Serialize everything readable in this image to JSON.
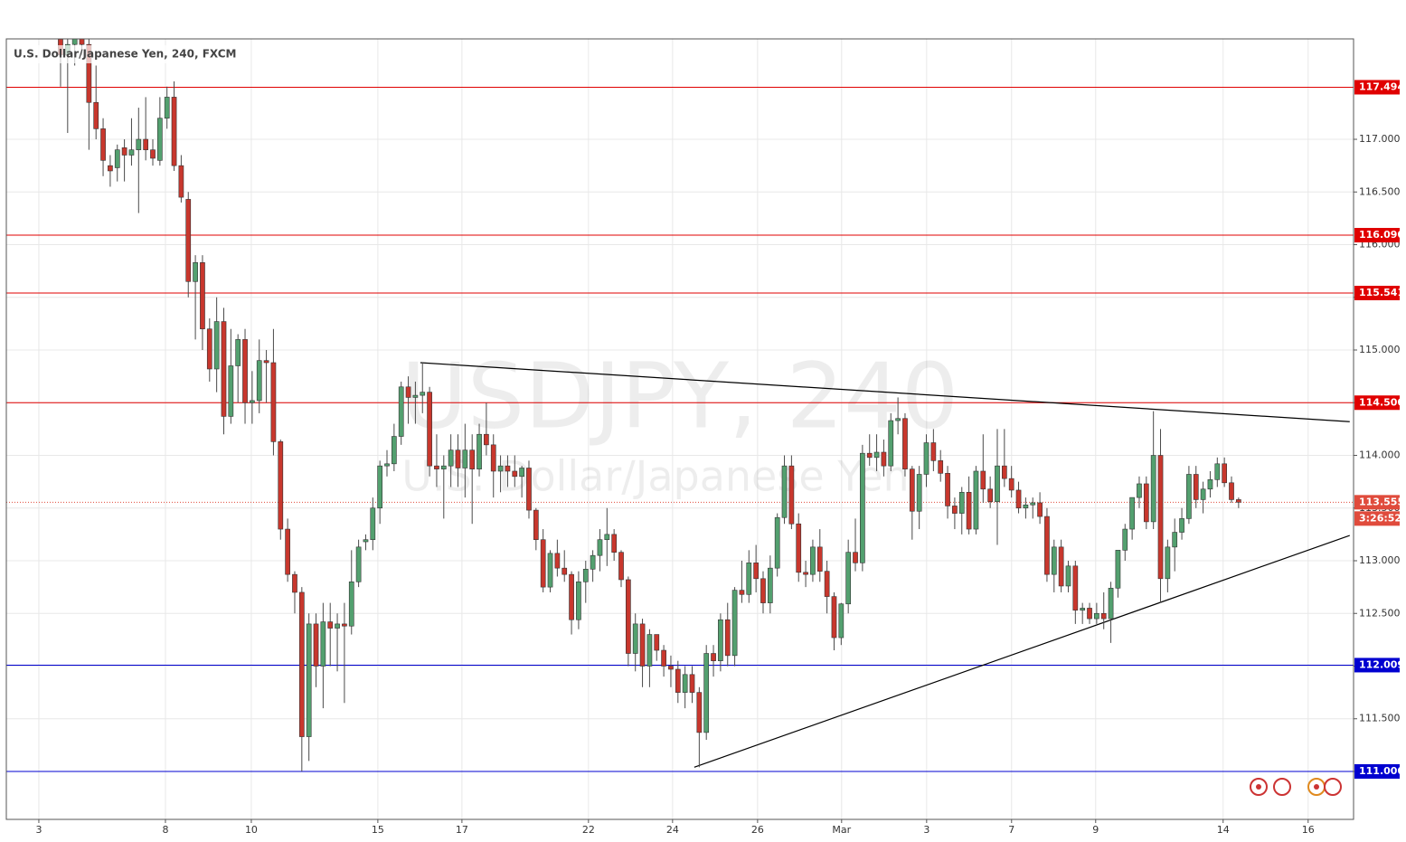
{
  "chart_data": {
    "type": "candlestick",
    "title": "U.S. Dollar/Japanese Yen, 240, FXCM",
    "watermark": [
      "USDJPY, 240",
      "U.S. Dollar/Japanese Yen"
    ],
    "up_color": "#53a06f",
    "down_color": "#c8372d",
    "wick_color": "#4a4a4a",
    "open": [
      117.95,
      117.8,
      117.9,
      118.0,
      117.9,
      117.35,
      117.1,
      116.75,
      116.73,
      116.92,
      116.85,
      116.9,
      117.0,
      116.9,
      116.8,
      117.2,
      117.4,
      116.75,
      116.43,
      115.65,
      115.83,
      115.2,
      114.82,
      115.27,
      114.37,
      114.85,
      115.1,
      114.5,
      114.52,
      114.9,
      114.88,
      114.13,
      113.3,
      112.87,
      112.7,
      111.33,
      112.4,
      112.0,
      112.42,
      112.36,
      112.4,
      112.38,
      112.8,
      113.18,
      113.2,
      113.5,
      113.9,
      113.92,
      114.18,
      114.65,
      114.55,
      114.57,
      114.6,
      113.9,
      113.87,
      113.9,
      114.05,
      113.88,
      114.05,
      113.87,
      114.2,
      114.1,
      113.85,
      113.9,
      113.85,
      113.8,
      113.88,
      113.48,
      113.2,
      112.75,
      113.07,
      112.93,
      112.87,
      112.44,
      112.8,
      112.92,
      113.05,
      113.2,
      113.25,
      113.08,
      112.82,
      112.12,
      112.4,
      112.0,
      112.3,
      112.15,
      112.0,
      111.97,
      111.75,
      111.92,
      111.75,
      111.37,
      112.12,
      112.05,
      112.44,
      112.1,
      112.72,
      112.68,
      112.98,
      112.83,
      112.6,
      112.93,
      113.41,
      113.9,
      113.35,
      112.89,
      112.87,
      113.13,
      112.9,
      112.66,
      112.27,
      112.59,
      113.08,
      112.98,
      114.02,
      113.98,
      114.03,
      113.9,
      114.33,
      114.35,
      113.87,
      113.47,
      113.82,
      114.12,
      113.95,
      113.83,
      113.52,
      113.45,
      113.65,
      113.3,
      113.85,
      113.68,
      113.56,
      113.9,
      113.78,
      113.67,
      113.5,
      113.53,
      113.55,
      113.42,
      112.87,
      113.13,
      112.76,
      112.95,
      112.53,
      112.55,
      112.45,
      112.5,
      112.45,
      112.74,
      113.1,
      113.3,
      113.6,
      113.73,
      113.37,
      114.0,
      112.83,
      113.13,
      113.27,
      113.4,
      113.82,
      113.58,
      113.68,
      113.77,
      113.92,
      113.74,
      113.58
    ],
    "high": [
      118.1,
      118.0,
      118.1,
      118.1,
      118.0,
      117.7,
      117.2,
      116.85,
      116.95,
      117.0,
      117.2,
      117.3,
      117.4,
      117.0,
      117.4,
      117.5,
      117.55,
      116.85,
      116.5,
      115.9,
      115.9,
      115.3,
      115.5,
      115.4,
      115.2,
      115.15,
      115.2,
      114.8,
      115.1,
      115.0,
      115.2,
      114.15,
      113.4,
      112.9,
      112.75,
      112.5,
      112.5,
      112.6,
      112.6,
      112.5,
      112.6,
      113.1,
      113.2,
      113.25,
      113.6,
      113.95,
      114.05,
      114.3,
      114.7,
      114.75,
      114.7,
      114.88,
      114.65,
      114.2,
      114.0,
      114.2,
      114.2,
      114.3,
      114.2,
      114.3,
      114.5,
      114.2,
      114.0,
      114.0,
      114.0,
      113.9,
      113.95,
      113.5,
      113.3,
      113.1,
      113.2,
      113.1,
      112.9,
      112.9,
      113.0,
      113.1,
      113.3,
      113.5,
      113.3,
      113.1,
      112.85,
      112.5,
      112.45,
      112.35,
      112.3,
      112.2,
      112.1,
      112.05,
      112.0,
      112.0,
      111.8,
      112.2,
      112.2,
      112.5,
      112.6,
      112.75,
      113.0,
      113.1,
      113.15,
      112.9,
      113.05,
      113.45,
      114.0,
      114.0,
      113.45,
      113.0,
      113.2,
      113.3,
      113.0,
      112.7,
      112.6,
      113.2,
      113.4,
      114.1,
      114.2,
      114.2,
      114.15,
      114.4,
      114.55,
      114.4,
      113.9,
      113.9,
      114.2,
      114.25,
      114.05,
      113.9,
      113.6,
      113.7,
      113.8,
      113.9,
      114.2,
      113.8,
      114.25,
      114.25,
      113.9,
      113.75,
      113.6,
      113.6,
      113.65,
      113.5,
      113.2,
      113.2,
      113.0,
      113.0,
      112.6,
      112.6,
      112.6,
      112.7,
      112.8,
      113.1,
      113.35,
      113.6,
      113.8,
      113.8,
      114.42,
      114.25,
      113.2,
      113.4,
      113.5,
      113.9,
      113.9,
      113.75,
      113.85,
      113.98,
      113.98,
      113.8,
      113.6
    ],
    "low": [
      117.5,
      117.06,
      117.7,
      117.8,
      116.9,
      117.0,
      116.65,
      116.55,
      116.6,
      116.6,
      116.75,
      116.3,
      116.8,
      116.75,
      116.75,
      117.1,
      116.7,
      116.4,
      115.5,
      115.1,
      115.0,
      114.7,
      114.6,
      114.2,
      114.3,
      114.5,
      114.3,
      114.3,
      114.4,
      114.5,
      114.0,
      113.2,
      112.8,
      112.5,
      111.0,
      111.1,
      111.8,
      111.6,
      112.0,
      111.95,
      111.65,
      112.3,
      112.75,
      113.1,
      113.1,
      113.35,
      113.8,
      113.85,
      114.1,
      114.3,
      114.3,
      114.4,
      113.8,
      113.7,
      113.4,
      113.7,
      113.7,
      113.6,
      113.35,
      113.8,
      114.0,
      113.6,
      113.65,
      113.7,
      113.7,
      113.6,
      113.4,
      113.1,
      112.7,
      112.7,
      112.85,
      112.8,
      112.3,
      112.35,
      112.6,
      112.8,
      112.9,
      112.95,
      113.0,
      112.75,
      112.0,
      111.95,
      111.8,
      111.8,
      112.05,
      111.9,
      111.8,
      111.65,
      111.6,
      111.65,
      111.04,
      111.3,
      111.9,
      111.95,
      112.0,
      112.0,
      112.6,
      112.6,
      112.7,
      112.5,
      112.5,
      112.85,
      113.35,
      113.3,
      112.8,
      112.75,
      112.8,
      112.8,
      112.5,
      112.15,
      112.2,
      112.5,
      112.9,
      112.9,
      113.9,
      113.85,
      113.8,
      113.85,
      114.2,
      113.8,
      113.2,
      113.3,
      113.7,
      113.85,
      113.75,
      113.4,
      113.3,
      113.25,
      113.25,
      113.25,
      113.55,
      113.5,
      113.15,
      113.7,
      113.6,
      113.45,
      113.4,
      113.4,
      113.35,
      112.8,
      112.7,
      112.7,
      112.7,
      112.4,
      112.4,
      112.4,
      112.4,
      112.35,
      112.22,
      112.65,
      113.0,
      113.2,
      113.5,
      113.3,
      113.3,
      112.6,
      112.7,
      112.9,
      113.2,
      113.35,
      113.5,
      113.45,
      113.6,
      113.7,
      113.7,
      113.55,
      113.5
    ],
    "close": [
      117.8,
      117.9,
      118.0,
      117.9,
      117.35,
      117.1,
      116.8,
      116.7,
      116.9,
      116.85,
      116.9,
      117.0,
      116.9,
      116.82,
      117.2,
      117.4,
      116.75,
      116.45,
      115.65,
      115.83,
      115.2,
      114.82,
      115.27,
      114.37,
      114.85,
      115.1,
      114.5,
      114.52,
      114.9,
      114.88,
      114.13,
      113.3,
      112.87,
      112.7,
      111.33,
      112.4,
      112.0,
      112.42,
      112.36,
      112.4,
      112.38,
      112.8,
      113.13,
      113.2,
      113.5,
      113.9,
      113.92,
      114.18,
      114.65,
      114.55,
      114.57,
      114.6,
      113.9,
      113.87,
      113.9,
      114.05,
      113.88,
      114.05,
      113.87,
      114.2,
      114.1,
      113.85,
      113.9,
      113.85,
      113.8,
      113.88,
      113.48,
      113.2,
      112.75,
      113.07,
      112.93,
      112.87,
      112.44,
      112.8,
      112.92,
      113.05,
      113.2,
      113.25,
      113.08,
      112.82,
      112.12,
      112.4,
      112.0,
      112.3,
      112.15,
      112.0,
      111.97,
      111.75,
      111.92,
      111.75,
      111.37,
      112.12,
      112.05,
      112.44,
      112.1,
      112.72,
      112.68,
      112.98,
      112.83,
      112.6,
      112.93,
      113.41,
      113.9,
      113.35,
      112.89,
      112.87,
      113.13,
      112.9,
      112.66,
      112.27,
      112.59,
      113.08,
      112.98,
      114.02,
      113.98,
      114.03,
      113.9,
      114.33,
      114.35,
      113.87,
      113.47,
      113.82,
      114.12,
      113.95,
      113.83,
      113.52,
      113.45,
      113.65,
      113.3,
      113.85,
      113.68,
      113.56,
      113.9,
      113.78,
      113.67,
      113.5,
      113.53,
      113.55,
      113.42,
      112.87,
      113.13,
      112.76,
      112.95,
      112.53,
      112.55,
      112.45,
      112.5,
      112.45,
      112.74,
      113.1,
      113.3,
      113.6,
      113.73,
      113.37,
      114.0,
      112.83,
      113.13,
      113.27,
      113.4,
      113.82,
      113.58,
      113.68,
      113.77,
      113.92,
      113.74,
      113.58,
      113.555
    ],
    "xlim": [
      -7.64,
      182.2
    ],
    "xticks": [
      {
        "value": -3.06,
        "label": "3"
      },
      {
        "value": 14.78,
        "label": "8"
      },
      {
        "value": 26.88,
        "label": "10"
      },
      {
        "value": 44.71,
        "label": "15"
      },
      {
        "value": 56.56,
        "label": "17"
      },
      {
        "value": 74.39,
        "label": "22"
      },
      {
        "value": 86.24,
        "label": "24"
      },
      {
        "value": 98.22,
        "label": "26"
      },
      {
        "value": 110.06,
        "label": "Mar"
      },
      {
        "value": 122.04,
        "label": "3"
      },
      {
        "value": 134.01,
        "label": "7"
      },
      {
        "value": 145.86,
        "label": "9"
      },
      {
        "value": 163.82,
        "label": "14"
      },
      {
        "value": 175.8,
        "label": "16"
      }
    ],
    "ylim": [
      110.545,
      117.953
    ],
    "yticks": [
      {
        "value": 111,
        "label": "111.000"
      },
      {
        "value": 111.5,
        "label": "111.500"
      },
      {
        "value": 112,
        "label": "112.000"
      },
      {
        "value": 112.5,
        "label": "112.500"
      },
      {
        "value": 113,
        "label": "113.000"
      },
      {
        "value": 113.5,
        "label": "113.500"
      },
      {
        "value": 114,
        "label": "114.000"
      },
      {
        "value": 114.5,
        "label": "114.500"
      },
      {
        "value": 115,
        "label": "115.000"
      },
      {
        "value": 115.5,
        "label": "115.500"
      },
      {
        "value": 116,
        "label": "116.000"
      },
      {
        "value": 116.5,
        "label": "116.500"
      },
      {
        "value": 117,
        "label": "117.000"
      }
    ],
    "grid": true,
    "hlines": [
      {
        "value": 117.494,
        "color": "#e00000"
      },
      {
        "value": 116.09,
        "label": "116.090",
        "color": "#e00000"
      },
      {
        "value": 115.541,
        "color": "#e00000"
      },
      {
        "value": 114.5,
        "label": "114.500",
        "color": "#e00000"
      },
      {
        "value": 112.009,
        "color": "#0000d0"
      },
      {
        "value": 111,
        "label": "111.000",
        "color": "#0000d0"
      }
    ],
    "trendlines": [
      {
        "x": [
          50.7,
          181.66
        ],
        "y": [
          114.88,
          114.32
        ]
      },
      {
        "x": [
          89.3,
          181.66
        ],
        "y": [
          111.04,
          113.24
        ]
      }
    ],
    "current_price": {
      "value": 113.555,
      "color": "#e04b3c",
      "countdown": "3:26:52"
    }
  }
}
